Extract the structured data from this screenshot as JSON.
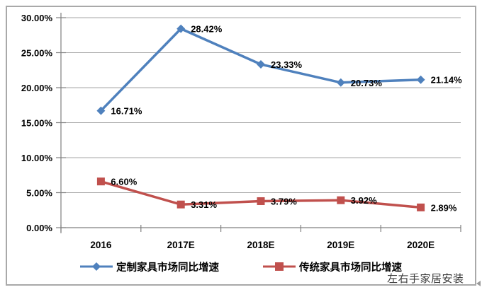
{
  "colors": {
    "series_blue": "#4F81BD",
    "series_red": "#C0504D",
    "grid": "#A6A6A6",
    "axis": "#808080",
    "label": "#000000",
    "frame_border": "#A9A9A9",
    "watermark": "#3B3B3B"
  },
  "chart_data": {
    "type": "line",
    "title": "",
    "xlabel": "",
    "ylabel": "",
    "grid": true,
    "legend_position": "bottom",
    "categories": [
      "2016",
      "2017E",
      "2018E",
      "2019E",
      "2020E"
    ],
    "series": [
      {
        "name": "定制家具市场同比增速",
        "color": "#4F81BD",
        "marker": "diamond",
        "values": [
          16.71,
          28.42,
          23.33,
          20.73,
          21.14
        ],
        "labels": [
          "16.71%",
          "28.42%",
          "23.33%",
          "20.73%",
          "21.14%"
        ]
      },
      {
        "name": "传统家具市场同比增速",
        "color": "#C0504D",
        "marker": "square",
        "values": [
          6.6,
          3.31,
          3.79,
          3.92,
          2.89
        ],
        "labels": [
          "6.60%",
          "3.31%",
          "3.79%",
          "3.92%",
          "2.89%"
        ]
      }
    ],
    "y_axis": {
      "min": 0,
      "max": 30,
      "step": 5,
      "ticks": [
        {
          "value": 0,
          "label": "0.00%"
        },
        {
          "value": 5,
          "label": "5.00%"
        },
        {
          "value": 10,
          "label": "10.00%"
        },
        {
          "value": 15,
          "label": "15.00%"
        },
        {
          "value": 20,
          "label": "20.00%"
        },
        {
          "value": 25,
          "label": "25.00%"
        },
        {
          "value": 30,
          "label": "30.00%"
        }
      ]
    }
  },
  "watermark": {
    "text": "左右手家居安装"
  }
}
